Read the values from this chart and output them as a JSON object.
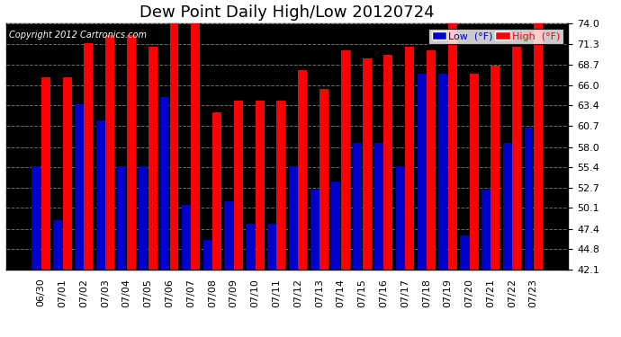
{
  "title": "Dew Point Daily High/Low 20120724",
  "copyright": "Copyright 2012 Cartronics.com",
  "dates": [
    "06/30",
    "07/01",
    "07/02",
    "07/03",
    "07/04",
    "07/05",
    "07/06",
    "07/07",
    "07/08",
    "07/09",
    "07/10",
    "07/11",
    "07/12",
    "07/13",
    "07/14",
    "07/15",
    "07/16",
    "07/17",
    "07/18",
    "07/19",
    "07/20",
    "07/21",
    "07/22",
    "07/23"
  ],
  "high": [
    67.0,
    67.0,
    71.5,
    72.5,
    72.5,
    71.0,
    74.5,
    74.5,
    62.5,
    64.0,
    64.0,
    64.0,
    68.0,
    65.5,
    70.5,
    69.5,
    70.0,
    71.0,
    70.5,
    74.5,
    67.5,
    68.5,
    71.0,
    74.0
  ],
  "low": [
    55.5,
    48.5,
    63.5,
    61.5,
    55.5,
    55.5,
    64.5,
    50.5,
    46.0,
    51.0,
    48.0,
    48.0,
    55.5,
    52.5,
    53.5,
    58.5,
    58.5,
    55.5,
    67.5,
    67.5,
    46.5,
    52.5,
    58.5,
    60.5
  ],
  "ylim_min": 42.1,
  "ylim_max": 74.0,
  "yticks": [
    42.1,
    44.8,
    47.4,
    50.1,
    52.7,
    55.4,
    58.0,
    60.7,
    63.4,
    66.0,
    68.7,
    71.3,
    74.0
  ],
  "ytick_labels": [
    "42.1",
    "44.8",
    "47.4",
    "50.1",
    "52.7",
    "55.4",
    "58.0",
    "60.7",
    "63.4",
    "66.0",
    "68.7",
    "71.3",
    "74.0"
  ],
  "bar_color_high": "#ff0000",
  "bar_color_low": "#0000cc",
  "bg_color": "#000000",
  "plot_bg_color": "#000000",
  "outer_bg_color": "#ffffff",
  "grid_color": "#888888",
  "title_fontsize": 13,
  "tick_fontsize": 8,
  "copyright_fontsize": 7,
  "legend_fontsize": 8,
  "bar_width": 0.42,
  "bar_gap": 0.02
}
